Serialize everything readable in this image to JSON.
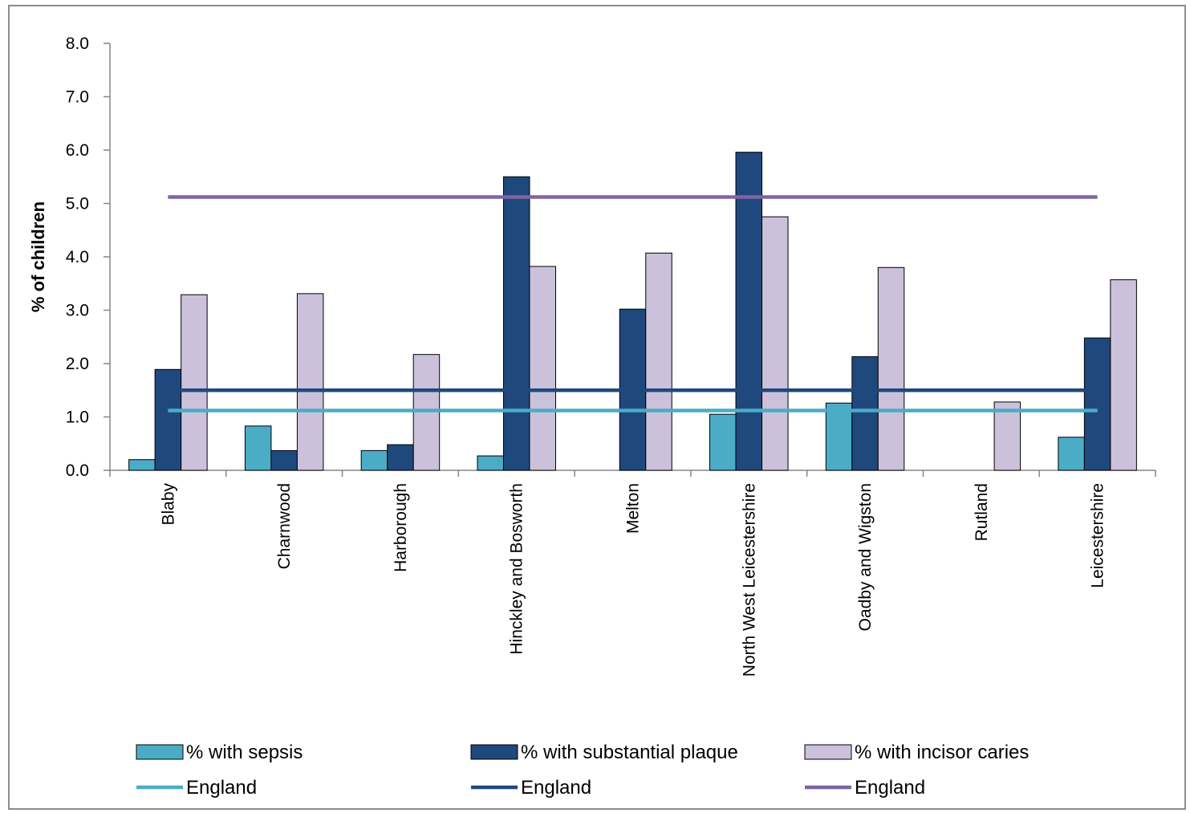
{
  "chart_data": {
    "type": "bar",
    "title": "",
    "xlabel": "",
    "ylabel": "% of children",
    "ylim": [
      0,
      8
    ],
    "yticks": [
      "0.0",
      "1.0",
      "2.0",
      "3.0",
      "4.0",
      "5.0",
      "6.0",
      "7.0",
      "8.0"
    ],
    "grid": false,
    "legend_position": "bottom",
    "categories": [
      "Blaby",
      "Charnwood",
      "Harborough",
      "Hinckley and Bosworth",
      "Melton",
      "North West Leicestershire",
      "Oadby and Wigston",
      "Rutland",
      "Leicestershire"
    ],
    "series": [
      {
        "name": "% with sepsis",
        "color": "#4bacc6",
        "values": [
          0.2,
          0.83,
          0.37,
          0.27,
          0,
          1.05,
          1.26,
          0,
          0.62
        ]
      },
      {
        "name": "% with substantial plaque",
        "color": "#1f497d",
        "values": [
          1.89,
          0.37,
          0.48,
          5.5,
          3.02,
          5.96,
          2.13,
          0,
          2.48
        ]
      },
      {
        "name": "% with incisor caries",
        "color": "#ccc1da",
        "values": [
          3.29,
          3.31,
          2.17,
          3.82,
          4.07,
          4.75,
          3.8,
          1.28,
          3.57
        ]
      }
    ],
    "reference_lines": [
      {
        "name": "England",
        "color": "#4bacc6",
        "value": 1.12
      },
      {
        "name": "England",
        "color": "#1f497d",
        "value": 1.5
      },
      {
        "name": "England",
        "color": "#8064a2",
        "value": 5.12
      }
    ]
  }
}
